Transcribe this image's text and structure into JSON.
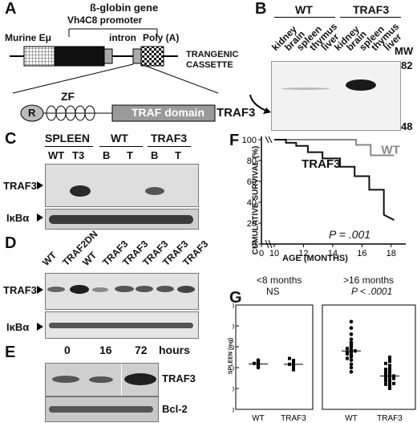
{
  "panels": {
    "A": {
      "letter": "A",
      "beta_globin": "ß-globin gene",
      "promoter": "Vh4C8 promoter",
      "murine": "Murine Eμ",
      "intron": "intron",
      "polya": "Poly (A)",
      "cassette": "TRANGENIC\nCASSETTE",
      "r": "R",
      "zf": "ZF",
      "traf_domain": "TRAF domain",
      "traf3": "TRAF3"
    },
    "B": {
      "letter": "B",
      "wt": "WT",
      "traf3": "TRAF3",
      "lanes": [
        "kidney",
        "brain",
        "spleen",
        "thymus",
        "liver",
        "kidney",
        "brain",
        "spleen",
        "thymus",
        "liver"
      ],
      "mw": "MW",
      "mw_high": "82",
      "mw_low": "48"
    },
    "C": {
      "letter": "C",
      "spleen": "SPLEEN",
      "wt": "WT",
      "traf3": "TRAF3",
      "lanes": [
        "WT",
        "T3",
        "B",
        "T",
        "B",
        "T"
      ],
      "row1": "TRAF3",
      "row2": "IκBα"
    },
    "D": {
      "letter": "D",
      "lanes": [
        "WT",
        "TRAF2DN",
        "WT",
        "TRAF3",
        "TRAF3",
        "TRAF3",
        "TRAF3",
        "TRAF3"
      ],
      "row1": "TRAF3",
      "row2": "IκBα"
    },
    "E": {
      "letter": "E",
      "times": [
        "0",
        "16",
        "72"
      ],
      "hours": "hours",
      "row1": "TRAF3",
      "row2": "Bcl-2"
    },
    "F": {
      "letter": "F",
      "ylabel": "CUMULATIVE SURVIVAL (%)",
      "xlabel": "AGE (MONTHS)",
      "p": "P = .001"
    },
    "G": {
      "letter": "G",
      "left_title": "<8 months",
      "left_stat": "NS",
      "right_title": ">16 months",
      "right_stat": "P < .0001",
      "ylabel": "SPLEEN (mg)",
      "groups": [
        "WT",
        "TRAF3",
        "WT",
        "TRAF3"
      ]
    }
  },
  "chart_data": [
    {
      "type": "line",
      "panel": "F",
      "xlabel": "AGE (MONTHS)",
      "ylabel": "CUMULATIVE SURVIVAL (%)",
      "xlim": [
        0,
        19
      ],
      "ylim": [
        0,
        100
      ],
      "x_ticks": [
        0,
        10,
        12,
        14,
        16,
        18
      ],
      "y_ticks": [
        0,
        20,
        40,
        60,
        80,
        100
      ],
      "series": [
        {
          "name": "WT",
          "color": "#888888",
          "x": [
            10,
            15.6,
            15.6,
            16.6,
            16.6,
            18.2
          ],
          "y": [
            100,
            100,
            95,
            95,
            85,
            85
          ]
        },
        {
          "name": "TRAF3",
          "color": "#111111",
          "x": [
            10,
            10.8,
            10.8,
            11.5,
            11.5,
            12.3,
            12.3,
            13.3,
            13.3,
            14.5,
            14.5,
            15.5,
            15.5,
            16.5,
            16.5,
            17.5,
            17.5,
            18.2
          ],
          "y": [
            100,
            100,
            97,
            97,
            94,
            94,
            88,
            88,
            82,
            82,
            74,
            74,
            65,
            65,
            52,
            52,
            28,
            23
          ]
        }
      ]
    },
    {
      "type": "scatter",
      "panel": "G",
      "ylabel": "SPLEEN (mg)",
      "ylim": [
        0,
        250
      ],
      "y_ticks": [
        0,
        50,
        100,
        150,
        200,
        250
      ],
      "groups": [
        {
          "subplot": "<8 months",
          "name": "WT",
          "marker": "circle",
          "values": [
            100,
            106,
            110,
            113,
            118
          ],
          "median": 109
        },
        {
          "subplot": "<8 months",
          "name": "TRAF3",
          "marker": "square",
          "values": [
            95,
            100,
            105,
            108,
            112,
            117,
            122
          ],
          "median": 108
        },
        {
          "subplot": ">16 months",
          "name": "WT",
          "marker": "circle",
          "values": [
            90,
            100,
            108,
            118,
            122,
            126,
            130,
            133,
            136,
            138,
            140,
            143,
            146,
            150,
            155,
            160,
            168,
            180,
            195,
            210
          ],
          "median": 140
        },
        {
          "subplot": ">16 months",
          "name": "TRAF3",
          "marker": "square",
          "values": [
            50,
            55,
            58,
            60,
            62,
            65,
            68,
            70,
            72,
            74,
            76,
            78,
            80,
            82,
            85,
            87,
            90,
            93,
            96,
            100,
            105,
            110,
            115,
            120,
            125
          ],
          "median": 80
        }
      ]
    }
  ]
}
